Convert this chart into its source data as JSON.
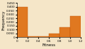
{
  "title": "",
  "xlabel": "Fitness",
  "ylabel": "Frequency",
  "background_color": "#f5e6c8",
  "bar_color": "#e07820",
  "bar_edge_color": "#c05000",
  "bins": [
    0,
    0.2,
    0.4,
    0.6,
    0.8,
    1.0,
    1.2
  ],
  "bar_heights": [
    0.4,
    0.01,
    0.01,
    0.05,
    0.13,
    0.28
  ],
  "xlim": [
    0,
    1.2
  ],
  "ylim": [
    0,
    0.45
  ],
  "xtick_labels": [
    "0",
    "0.2",
    "0.4",
    "0.6",
    "0.8",
    "1.0",
    "1.2"
  ],
  "ytick_labels": [
    "0",
    "0.050",
    "0.100",
    "0.150",
    "0.200",
    "0.250",
    "0.300",
    "0.350",
    "0.400",
    "0.450"
  ],
  "ytick_values": [
    0,
    0.05,
    0.1,
    0.15,
    0.2,
    0.25,
    0.3,
    0.35,
    0.4,
    0.45
  ],
  "title_fontsize": 5,
  "label_fontsize": 4,
  "tick_fontsize": 3
}
